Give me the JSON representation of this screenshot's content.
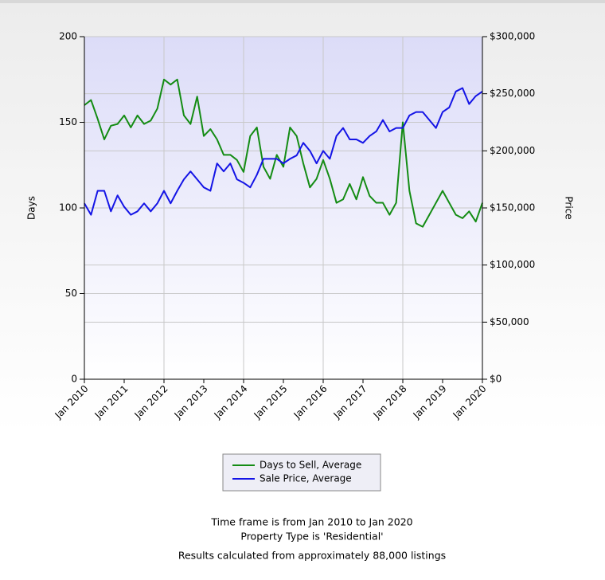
{
  "chart_data": {
    "type": "line",
    "y_label": "Days",
    "y2_label": "Price",
    "categories": [
      "Jan 2010",
      null,
      null,
      null,
      null,
      null,
      "Jan 2011",
      null,
      null,
      null,
      null,
      null,
      "Jan 2012",
      null,
      null,
      null,
      null,
      null,
      "Jan 2013",
      null,
      null,
      null,
      null,
      null,
      "Jan 2014",
      null,
      null,
      null,
      null,
      null,
      "Jan 2015",
      null,
      null,
      null,
      null,
      null,
      "Jan 2016",
      null,
      null,
      null,
      null,
      null,
      "Jan 2017",
      null,
      null,
      null,
      null,
      null,
      "Jan 2018",
      null,
      null,
      null,
      null,
      null,
      "Jan 2019",
      null,
      null,
      null,
      null,
      null,
      "Jan 2020"
    ],
    "series": [
      {
        "name": "Days to Sell, Average",
        "color": "#148c14",
        "axis": "y",
        "values": [
          160,
          163,
          152,
          140,
          148,
          149,
          154,
          147,
          154,
          149,
          151,
          158,
          175,
          172,
          175,
          154,
          149,
          165,
          142,
          146,
          140,
          131,
          131,
          128,
          121,
          142,
          147,
          124,
          117,
          131,
          124,
          147,
          142,
          126,
          112,
          117,
          128,
          117,
          103,
          105,
          114,
          105,
          118,
          107,
          103,
          103,
          96,
          103,
          150,
          110,
          91,
          89,
          96,
          103,
          110,
          103,
          96,
          94,
          98,
          92,
          103
        ]
      },
      {
        "name": "Sale Price, Average",
        "color": "#1414e6",
        "axis": "y2",
        "values": [
          154000,
          144000,
          165000,
          165000,
          147000,
          161000,
          151000,
          144000,
          147000,
          154000,
          147000,
          154000,
          165000,
          154000,
          165000,
          175000,
          182000,
          175000,
          168000,
          165000,
          189000,
          182000,
          189000,
          175000,
          172000,
          168000,
          179000,
          193000,
          193000,
          193000,
          189000,
          193000,
          196000,
          207000,
          200000,
          189000,
          200000,
          193000,
          213000,
          220000,
          210000,
          210000,
          207000,
          213000,
          217000,
          227000,
          217000,
          220000,
          220000,
          231000,
          234000,
          234000,
          227000,
          220000,
          234000,
          238000,
          252000,
          255000,
          241000,
          248000,
          252000
        ]
      }
    ],
    "ylim": [
      0,
      200
    ],
    "yticks": [
      0,
      50,
      100,
      150,
      200
    ],
    "y2lim": [
      0,
      300000
    ],
    "y2ticks": [
      {
        "value": 0,
        "label": "$0"
      },
      {
        "value": 50000,
        "label": "$50,000"
      },
      {
        "value": 100000,
        "label": "$100,000"
      },
      {
        "value": 150000,
        "label": "$150,000"
      },
      {
        "value": 200000,
        "label": "$200,000"
      },
      {
        "value": 250000,
        "label": "$250,000"
      },
      {
        "value": 300000,
        "label": "$300,000"
      }
    ],
    "grid": true,
    "legend": "bottom",
    "notes": [
      "Time frame is from Jan 2010 to Jan 2020",
      "Property Type is 'Residential'",
      "Results calculated from approximately 88,000 listings"
    ]
  }
}
